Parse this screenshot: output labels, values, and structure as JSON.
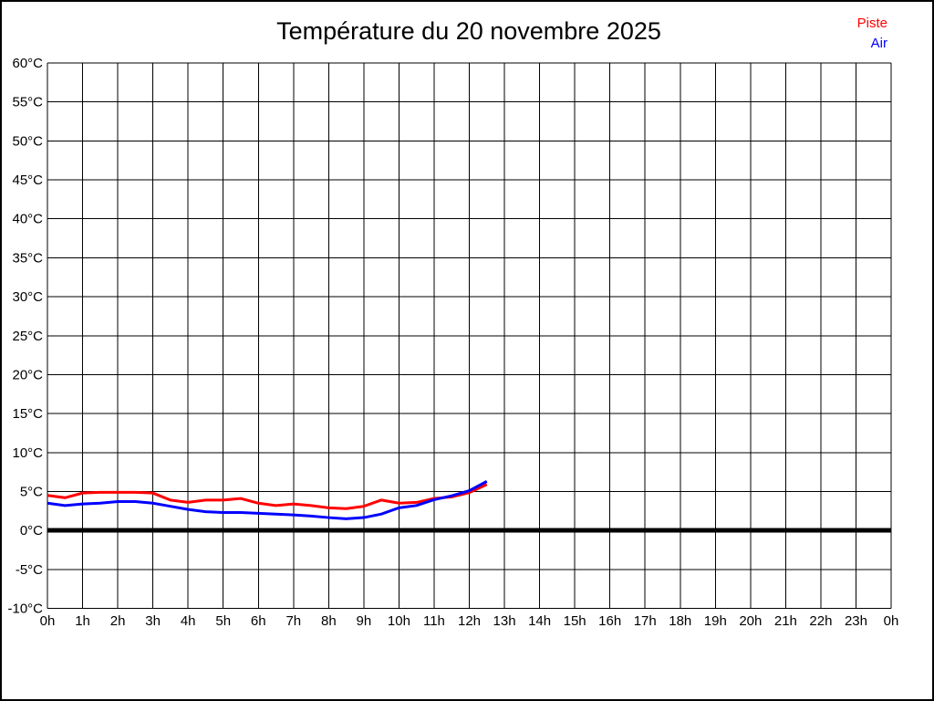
{
  "title": "Température du 20 novembre 2025",
  "legend": {
    "items": [
      {
        "label": "Piste",
        "color": "#ff0000"
      },
      {
        "label": "Air",
        "color": "#0000ff"
      }
    ]
  },
  "colors": {
    "background": "#ffffff",
    "grid": "#000000",
    "text": "#000000",
    "zero_line": "#000000",
    "piste": "#ff0000",
    "air": "#0000ff"
  },
  "chart_data": {
    "type": "line",
    "title": "Température du 20 novembre 2025",
    "xlabel": "",
    "ylabel": "",
    "x_unit": "hours",
    "xlim": [
      0,
      24
    ],
    "ylim": [
      -10,
      60
    ],
    "y_step": 5,
    "grid": true,
    "legend_position": "top-right",
    "zero_line_bold": true,
    "x_tick_labels": [
      "0h",
      "1h",
      "2h",
      "3h",
      "4h",
      "5h",
      "6h",
      "7h",
      "8h",
      "9h",
      "10h",
      "11h",
      "12h",
      "13h",
      "14h",
      "15h",
      "16h",
      "17h",
      "18h",
      "19h",
      "20h",
      "21h",
      "22h",
      "23h",
      "0h"
    ],
    "y_tick_labels": [
      "60°C",
      "55°C",
      "50°C",
      "45°C",
      "40°C",
      "35°C",
      "30°C",
      "25°C",
      "20°C",
      "15°C",
      "10°C",
      "5°C",
      "0°C",
      "-5°C",
      "-10°C"
    ],
    "x_hours": [
      0,
      0.5,
      1,
      1.5,
      2,
      2.5,
      3,
      3.5,
      4,
      4.5,
      5,
      5.5,
      6,
      6.5,
      7,
      7.5,
      8,
      8.5,
      9,
      9.5,
      10,
      10.5,
      11,
      11.5,
      12,
      12.5
    ],
    "series": [
      {
        "name": "Piste",
        "color": "#ff0000",
        "values": [
          4.5,
          4.2,
          4.8,
          4.9,
          4.9,
          4.9,
          4.8,
          3.9,
          3.6,
          3.9,
          3.9,
          4.1,
          3.5,
          3.2,
          3.4,
          3.2,
          2.9,
          2.8,
          3.1,
          3.9,
          3.5,
          3.6,
          4.1,
          4.3,
          4.85,
          5.9
        ]
      },
      {
        "name": "Air",
        "color": "#0000ff",
        "values": [
          3.5,
          3.2,
          3.4,
          3.5,
          3.7,
          3.7,
          3.5,
          3.1,
          2.7,
          2.4,
          2.3,
          2.3,
          2.2,
          2.1,
          2.0,
          1.85,
          1.65,
          1.5,
          1.65,
          2.1,
          2.9,
          3.2,
          3.95,
          4.45,
          5.1,
          6.3
        ]
      }
    ]
  }
}
